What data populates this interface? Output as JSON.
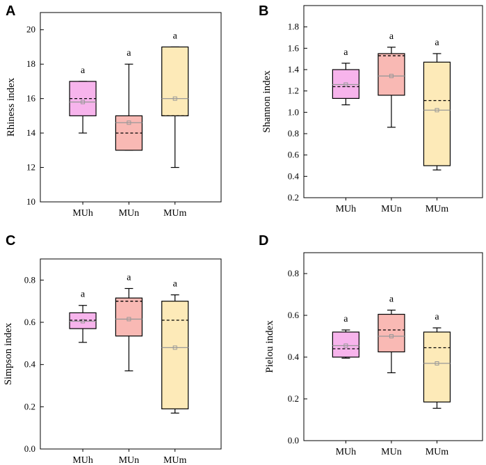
{
  "colors": {
    "MUh": "#f7b4ec",
    "MUn": "#f9b9b4",
    "MUm": "#fdeab8",
    "mean_line": "#000000",
    "median_line": "#999999"
  },
  "chart_data": [
    {
      "type": "box",
      "panel": "A",
      "ylabel": "Rhiness index",
      "ylim": [
        10,
        21
      ],
      "yticks": [
        "10",
        "12",
        "14",
        "16",
        "18",
        "20"
      ],
      "tick_values": [
        10,
        12,
        14,
        16,
        18,
        20
      ],
      "categories": [
        "MUh",
        "MUn",
        "MUm"
      ],
      "boxes": [
        {
          "group": "MUh",
          "min": 14,
          "q1": 15,
          "median": 15.8,
          "q3": 17,
          "max": 17,
          "mean": 16,
          "label": "a"
        },
        {
          "group": "MUn",
          "min": 13,
          "q1": 13,
          "median": 14.6,
          "q3": 15,
          "max": 18,
          "mean": 14,
          "label": "a"
        },
        {
          "group": "MUm",
          "min": 12,
          "q1": 15,
          "median": 16,
          "q3": 19,
          "max": 19,
          "mean": 15,
          "label": "a"
        }
      ]
    },
    {
      "type": "box",
      "panel": "B",
      "ylabel": "Shannon index",
      "ylim": [
        0.2,
        2.0
      ],
      "yticks": [
        "0.2",
        "0.4",
        "0.6",
        "0.8",
        "1.0",
        "1.2",
        "1.4",
        "1.6",
        "1.8"
      ],
      "tick_values": [
        0.2,
        0.4,
        0.6,
        0.8,
        1.0,
        1.2,
        1.4,
        1.6,
        1.8
      ],
      "categories": [
        "MUh",
        "MUn",
        "MUm"
      ],
      "boxes": [
        {
          "group": "MUh",
          "min": 1.07,
          "q1": 1.13,
          "median": 1.26,
          "q3": 1.4,
          "max": 1.46,
          "mean": 1.24,
          "label": "a"
        },
        {
          "group": "MUn",
          "min": 0.86,
          "q1": 1.16,
          "median": 1.34,
          "q3": 1.55,
          "max": 1.61,
          "mean": 1.53,
          "label": "a"
        },
        {
          "group": "MUm",
          "min": 0.46,
          "q1": 0.5,
          "median": 1.02,
          "q3": 1.47,
          "max": 1.55,
          "mean": 1.11,
          "label": "a"
        }
      ]
    },
    {
      "type": "box",
      "panel": "C",
      "ylabel": "Simpson index",
      "ylim": [
        0.0,
        0.9
      ],
      "yticks": [
        "0.0",
        "0.2",
        "0.4",
        "0.6",
        "0.8"
      ],
      "tick_values": [
        0.0,
        0.2,
        0.4,
        0.6,
        0.8
      ],
      "categories": [
        "MUh",
        "MUn",
        "MUm"
      ],
      "boxes": [
        {
          "group": "MUh",
          "min": 0.505,
          "q1": 0.57,
          "median": 0.605,
          "q3": 0.645,
          "max": 0.68,
          "mean": 0.61,
          "label": "a"
        },
        {
          "group": "MUn",
          "min": 0.37,
          "q1": 0.535,
          "median": 0.615,
          "q3": 0.715,
          "max": 0.76,
          "mean": 0.7,
          "label": "a"
        },
        {
          "group": "MUm",
          "min": 0.17,
          "q1": 0.19,
          "median": 0.48,
          "q3": 0.7,
          "max": 0.73,
          "mean": 0.61,
          "label": "a"
        }
      ]
    },
    {
      "type": "box",
      "panel": "D",
      "ylabel": "Pielou index",
      "ylim": [
        0.0,
        0.9
      ],
      "yticks": [
        "0.0",
        "0.2",
        "0.4",
        "0.6",
        "0.8"
      ],
      "tick_values": [
        0.0,
        0.2,
        0.4,
        0.6,
        0.8
      ],
      "categories": [
        "MUh",
        "MUn",
        "MUm"
      ],
      "boxes": [
        {
          "group": "MUh",
          "min": 0.395,
          "q1": 0.4,
          "median": 0.455,
          "q3": 0.52,
          "max": 0.53,
          "mean": 0.44,
          "label": "a"
        },
        {
          "group": "MUn",
          "min": 0.325,
          "q1": 0.425,
          "median": 0.5,
          "q3": 0.605,
          "max": 0.625,
          "mean": 0.53,
          "label": "a"
        },
        {
          "group": "MUm",
          "min": 0.155,
          "q1": 0.185,
          "median": 0.37,
          "q3": 0.52,
          "max": 0.54,
          "mean": 0.445,
          "label": "a"
        }
      ]
    }
  ]
}
